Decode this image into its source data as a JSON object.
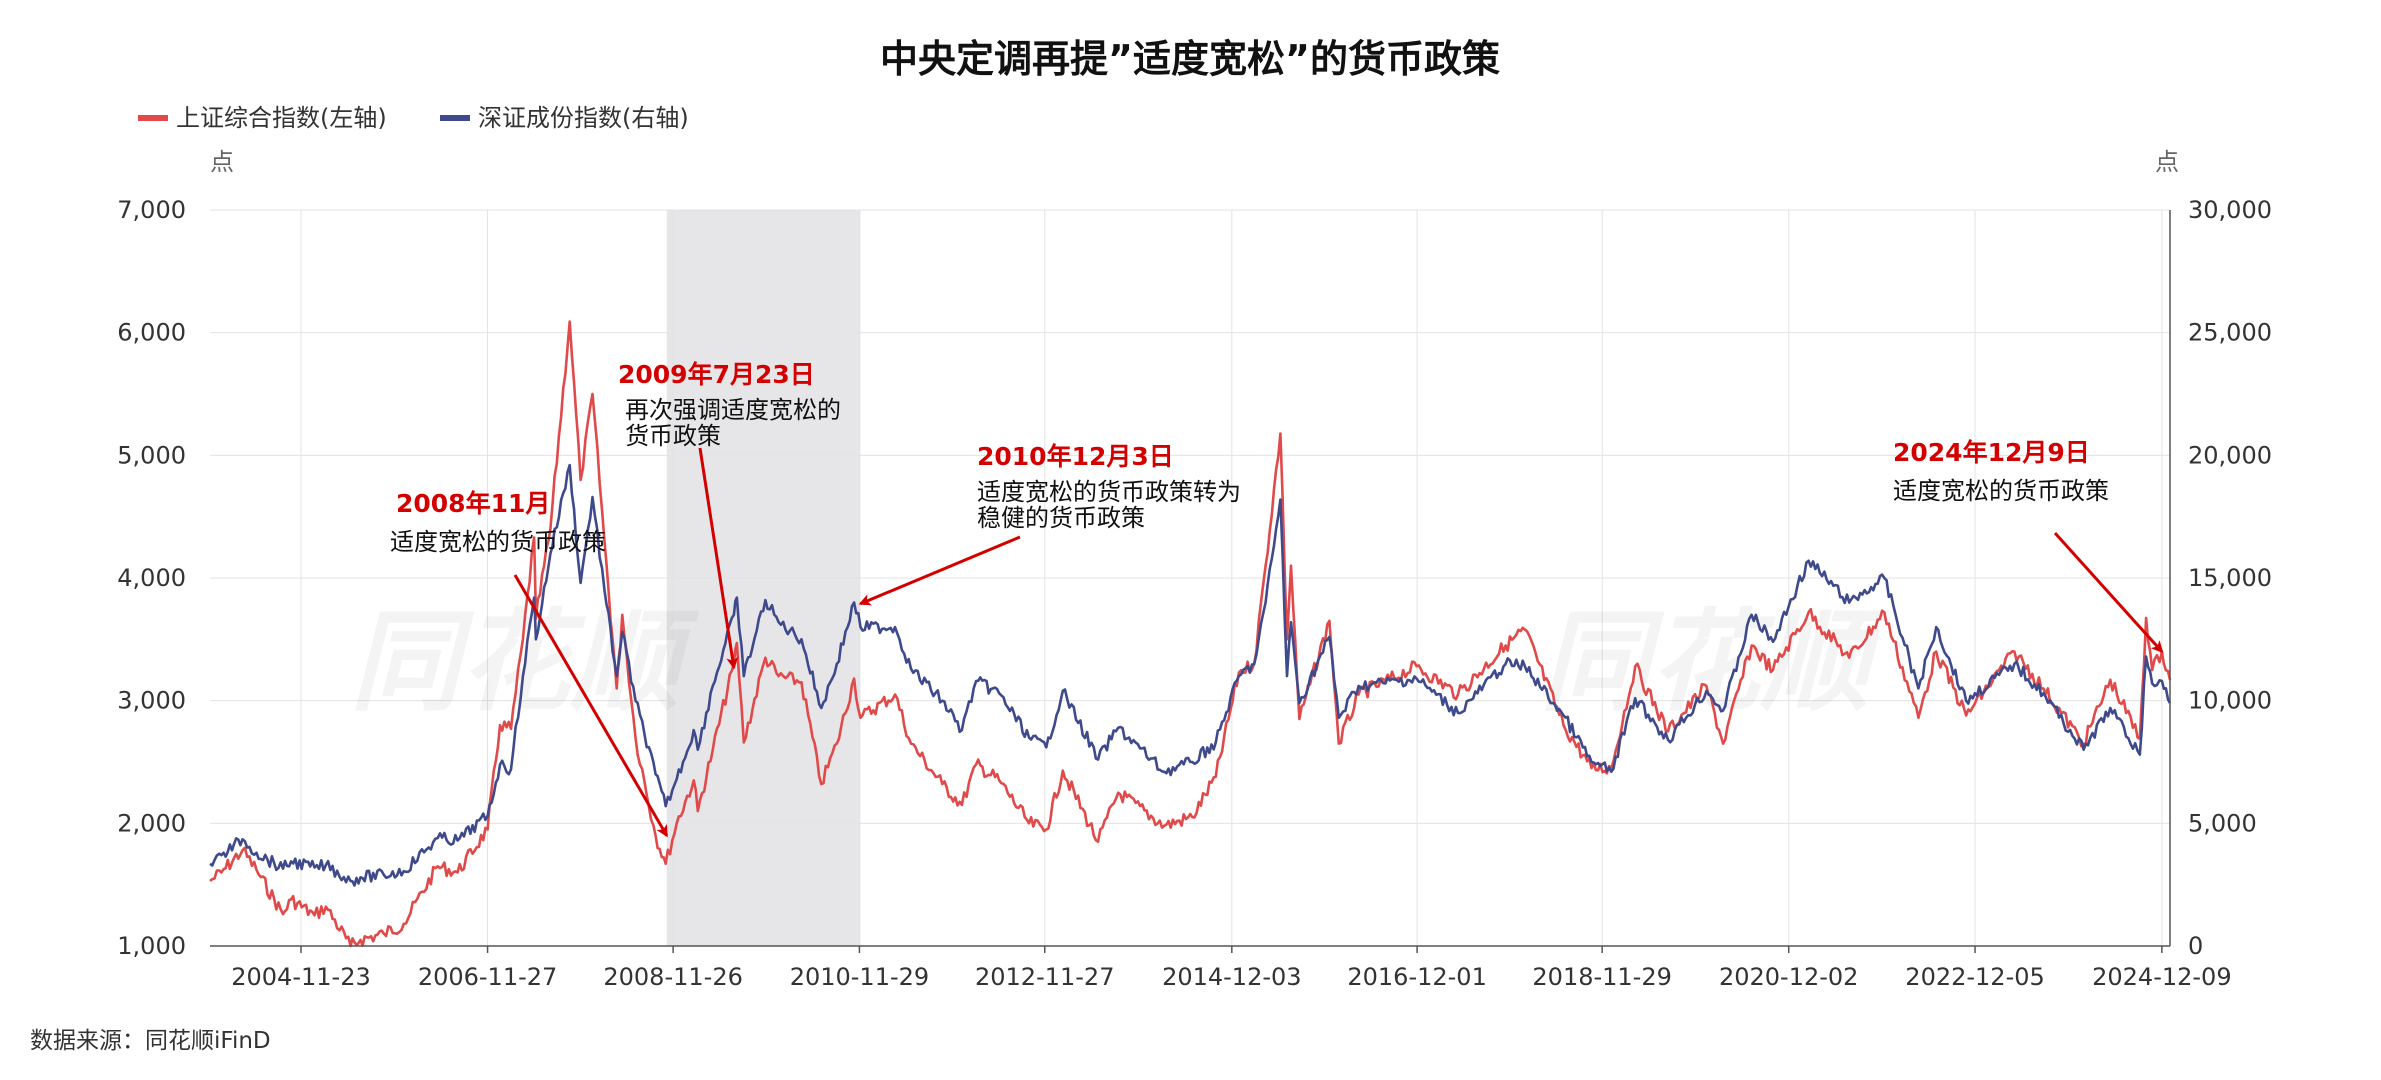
{
  "chart_data": {
    "type": "line",
    "title": "中央定调再提”适度宽松”的货币政策",
    "source": "数据来源：同花顺iFinD",
    "watermark": "同花顺",
    "left_axis": {
      "unit": "点",
      "ylim": [
        1000,
        7000
      ],
      "ticks": [
        "1,000",
        "2,000",
        "3,000",
        "4,000",
        "5,000",
        "6,000",
        "7,000"
      ]
    },
    "right_axis": {
      "unit": "点",
      "ylim": [
        0,
        30000
      ],
      "ticks": [
        "0",
        "5,000",
        "10,000",
        "15,000",
        "20,000",
        "25,000",
        "30,000"
      ]
    },
    "x_ticks": [
      "2004-11-23",
      "2006-11-27",
      "2008-11-26",
      "2010-11-29",
      "2012-11-27",
      "2014-12-03",
      "2016-12-01",
      "2018-11-29",
      "2020-12-02",
      "2022-12-05",
      "2024-12-09"
    ],
    "x_range": [
      "2003-12-01",
      "2025-01-10"
    ],
    "shaded_period": [
      "2008-11-01",
      "2010-12-03"
    ],
    "legend_placement": "top-left",
    "grid": true,
    "series": [
      {
        "name": "上证综合指数(左轴)",
        "axis": "left",
        "color": "#e04a4a",
        "points": [
          [
            "2003-12-01",
            1530
          ],
          [
            "2004-01-15",
            1600
          ],
          [
            "2004-04-07",
            1780
          ],
          [
            "2004-06-01",
            1620
          ],
          [
            "2004-09-13",
            1260
          ],
          [
            "2004-10-15",
            1380
          ],
          [
            "2005-01-15",
            1250
          ],
          [
            "2005-03-01",
            1320
          ],
          [
            "2005-06-06",
            1000
          ],
          [
            "2005-07-15",
            1050
          ],
          [
            "2005-10-15",
            1100
          ],
          [
            "2006-01-01",
            1180
          ],
          [
            "2006-05-15",
            1650
          ],
          [
            "2006-08-01",
            1600
          ],
          [
            "2006-11-27",
            1950
          ],
          [
            "2007-01-15",
            2800
          ],
          [
            "2007-02-27",
            2770
          ],
          [
            "2007-04-15",
            3500
          ],
          [
            "2007-05-29",
            4330
          ],
          [
            "2007-06-05",
            3670
          ],
          [
            "2007-08-01",
            4400
          ],
          [
            "2007-10-16",
            6090
          ],
          [
            "2007-11-28",
            4800
          ],
          [
            "2008-01-14",
            5500
          ],
          [
            "2008-03-01",
            4300
          ],
          [
            "2008-04-18",
            3100
          ],
          [
            "2008-05-10",
            3700
          ],
          [
            "2008-07-01",
            2700
          ],
          [
            "2008-09-18",
            1900
          ],
          [
            "2008-10-28",
            1670
          ],
          [
            "2008-12-10",
            2000
          ],
          [
            "2009-02-15",
            2350
          ],
          [
            "2009-03-03",
            2100
          ],
          [
            "2009-05-01",
            2600
          ],
          [
            "2009-07-23",
            3300
          ],
          [
            "2009-08-04",
            3470
          ],
          [
            "2009-08-31",
            2660
          ],
          [
            "2009-11-24",
            3350
          ],
          [
            "2010-01-15",
            3200
          ],
          [
            "2010-04-15",
            3150
          ],
          [
            "2010-07-02",
            2320
          ],
          [
            "2010-09-01",
            2650
          ],
          [
            "2010-11-08",
            3180
          ],
          [
            "2010-12-03",
            2860
          ],
          [
            "2011-04-18",
            3050
          ],
          [
            "2011-06-20",
            2650
          ],
          [
            "2011-10-21",
            2320
          ],
          [
            "2012-01-06",
            2150
          ],
          [
            "2012-03-02",
            2480
          ],
          [
            "2012-06-01",
            2350
          ],
          [
            "2012-09-26",
            2000
          ],
          [
            "2012-12-03",
            1950
          ],
          [
            "2013-02-06",
            2430
          ],
          [
            "2013-06-25",
            1850
          ],
          [
            "2013-09-12",
            2250
          ],
          [
            "2014-03-12",
            1980
          ],
          [
            "2014-07-01",
            2050
          ],
          [
            "2014-10-01",
            2380
          ],
          [
            "2014-12-31",
            3230
          ],
          [
            "2015-03-01",
            3300
          ],
          [
            "2015-04-15",
            4100
          ],
          [
            "2015-06-12",
            5178
          ],
          [
            "2015-07-08",
            3500
          ],
          [
            "2015-07-24",
            4100
          ],
          [
            "2015-08-26",
            2850
          ],
          [
            "2015-12-22",
            3650
          ],
          [
            "2016-01-28",
            2650
          ],
          [
            "2016-04-15",
            3050
          ],
          [
            "2016-11-29",
            3280
          ],
          [
            "2017-05-11",
            3050
          ],
          [
            "2017-11-14",
            3450
          ],
          [
            "2018-01-29",
            3580
          ],
          [
            "2018-06-30",
            2800
          ],
          [
            "2018-10-18",
            2450
          ],
          [
            "2019-01-04",
            2450
          ],
          [
            "2019-04-08",
            3280
          ],
          [
            "2019-08-15",
            2750
          ],
          [
            "2020-01-13",
            3120
          ],
          [
            "2020-03-19",
            2650
          ],
          [
            "2020-07-09",
            3450
          ],
          [
            "2020-10-01",
            3250
          ],
          [
            "2021-02-18",
            3720
          ],
          [
            "2021-07-28",
            3350
          ],
          [
            "2021-12-13",
            3720
          ],
          [
            "2022-04-26",
            2860
          ],
          [
            "2022-07-05",
            3400
          ],
          [
            "2022-10-31",
            2880
          ],
          [
            "2023-05-09",
            3400
          ],
          [
            "2023-08-31",
            3100
          ],
          [
            "2024-02-05",
            2650
          ],
          [
            "2024-05-20",
            3170
          ],
          [
            "2024-09-13",
            2690
          ],
          [
            "2024-10-08",
            3675
          ],
          [
            "2024-11-01",
            3250
          ],
          [
            "2024-12-09",
            3400
          ],
          [
            "2025-01-10",
            3170
          ]
        ]
      },
      {
        "name": "深证成份指数(右轴)",
        "axis": "right",
        "color": "#3f4a8c",
        "points": [
          [
            "2003-12-01",
            3350
          ],
          [
            "2004-01-15",
            3700
          ],
          [
            "2004-04-07",
            4350
          ],
          [
            "2004-06-01",
            3800
          ],
          [
            "2004-09-13",
            3150
          ],
          [
            "2004-10-15",
            3450
          ],
          [
            "2005-01-15",
            3200
          ],
          [
            "2005-03-01",
            3300
          ],
          [
            "2005-06-06",
            2650
          ],
          [
            "2005-07-15",
            2800
          ],
          [
            "2005-10-15",
            2900
          ],
          [
            "2006-01-01",
            3050
          ],
          [
            "2006-05-15",
            4400
          ],
          [
            "2006-08-01",
            4300
          ],
          [
            "2006-11-27",
            5300
          ],
          [
            "2007-01-15",
            7400
          ],
          [
            "2007-02-27",
            7200
          ],
          [
            "2007-04-15",
            11000
          ],
          [
            "2007-05-29",
            14200
          ],
          [
            "2007-06-05",
            12500
          ],
          [
            "2007-08-01",
            16000
          ],
          [
            "2007-10-16",
            19600
          ],
          [
            "2007-11-28",
            14800
          ],
          [
            "2008-01-14",
            18300
          ],
          [
            "2008-03-01",
            14500
          ],
          [
            "2008-04-18",
            11000
          ],
          [
            "2008-05-10",
            12800
          ],
          [
            "2008-07-01",
            10000
          ],
          [
            "2008-09-18",
            7000
          ],
          [
            "2008-10-28",
            5700
          ],
          [
            "2008-12-10",
            6800
          ],
          [
            "2009-02-15",
            8800
          ],
          [
            "2009-03-03",
            8000
          ],
          [
            "2009-05-01",
            10600
          ],
          [
            "2009-07-23",
            13500
          ],
          [
            "2009-08-04",
            14200
          ],
          [
            "2009-08-31",
            11000
          ],
          [
            "2009-11-24",
            14100
          ],
          [
            "2010-01-15",
            13200
          ],
          [
            "2010-04-15",
            12500
          ],
          [
            "2010-07-02",
            9700
          ],
          [
            "2010-09-01",
            11500
          ],
          [
            "2010-11-08",
            14000
          ],
          [
            "2010-12-03",
            13000
          ],
          [
            "2011-04-18",
            13000
          ],
          [
            "2011-06-20",
            11300
          ],
          [
            "2011-10-21",
            10000
          ],
          [
            "2012-01-06",
            8800
          ],
          [
            "2012-03-02",
            10800
          ],
          [
            "2012-06-01",
            10300
          ],
          [
            "2012-09-26",
            8500
          ],
          [
            "2012-12-03",
            8100
          ],
          [
            "2013-02-06",
            10400
          ],
          [
            "2013-06-25",
            7600
          ],
          [
            "2013-09-12",
            8900
          ],
          [
            "2014-03-12",
            7100
          ],
          [
            "2014-07-01",
            7500
          ],
          [
            "2014-10-01",
            8300
          ],
          [
            "2014-12-31",
            11000
          ],
          [
            "2015-03-01",
            11500
          ],
          [
            "2015-04-15",
            14000
          ],
          [
            "2015-06-12",
            18200
          ],
          [
            "2015-07-08",
            11000
          ],
          [
            "2015-07-24",
            13200
          ],
          [
            "2015-08-26",
            9900
          ],
          [
            "2015-12-22",
            12600
          ],
          [
            "2016-01-28",
            9300
          ],
          [
            "2016-04-15",
            10600
          ],
          [
            "2016-11-29",
            10900
          ],
          [
            "2017-05-11",
            9500
          ],
          [
            "2017-11-14",
            11500
          ],
          [
            "2018-01-29",
            11400
          ],
          [
            "2018-06-30",
            9400
          ],
          [
            "2018-10-18",
            7500
          ],
          [
            "2019-01-04",
            7100
          ],
          [
            "2019-04-08",
            10100
          ],
          [
            "2019-08-15",
            8400
          ],
          [
            "2020-01-13",
            10400
          ],
          [
            "2020-03-19",
            9600
          ],
          [
            "2020-07-09",
            13500
          ],
          [
            "2020-10-01",
            12400
          ],
          [
            "2021-02-18",
            15700
          ],
          [
            "2021-07-28",
            14000
          ],
          [
            "2021-12-13",
            15000
          ],
          [
            "2022-04-26",
            10500
          ],
          [
            "2022-07-05",
            13000
          ],
          [
            "2022-10-31",
            10000
          ],
          [
            "2023-05-09",
            11500
          ],
          [
            "2023-08-31",
            10300
          ],
          [
            "2024-02-05",
            8000
          ],
          [
            "2024-05-20",
            9700
          ],
          [
            "2024-09-13",
            7800
          ],
          [
            "2024-10-08",
            11800
          ],
          [
            "2024-11-01",
            10700
          ],
          [
            "2024-12-09",
            10800
          ],
          [
            "2025-01-10",
            9900
          ]
        ]
      }
    ],
    "annotations": [
      {
        "date": "2008年11月",
        "text": [
          "适度宽松的货币政策"
        ],
        "arrow_to": [
          "2008-11-01",
          1900
        ]
      },
      {
        "date": "2009年7月23日",
        "text": [
          "再次强调适度宽松的",
          "货币政策"
        ],
        "arrow_to": [
          "2009-07-23",
          3270
        ]
      },
      {
        "date": "2010年12月3日",
        "text": [
          "适度宽松的货币政策转为",
          "稳健的货币政策"
        ],
        "arrow_to": [
          "2010-12-03",
          3790
        ]
      },
      {
        "date": "2024年12月9日",
        "text": [
          "适度宽松的货币政策"
        ],
        "arrow_to": [
          "2024-12-09",
          3400
        ]
      }
    ]
  }
}
